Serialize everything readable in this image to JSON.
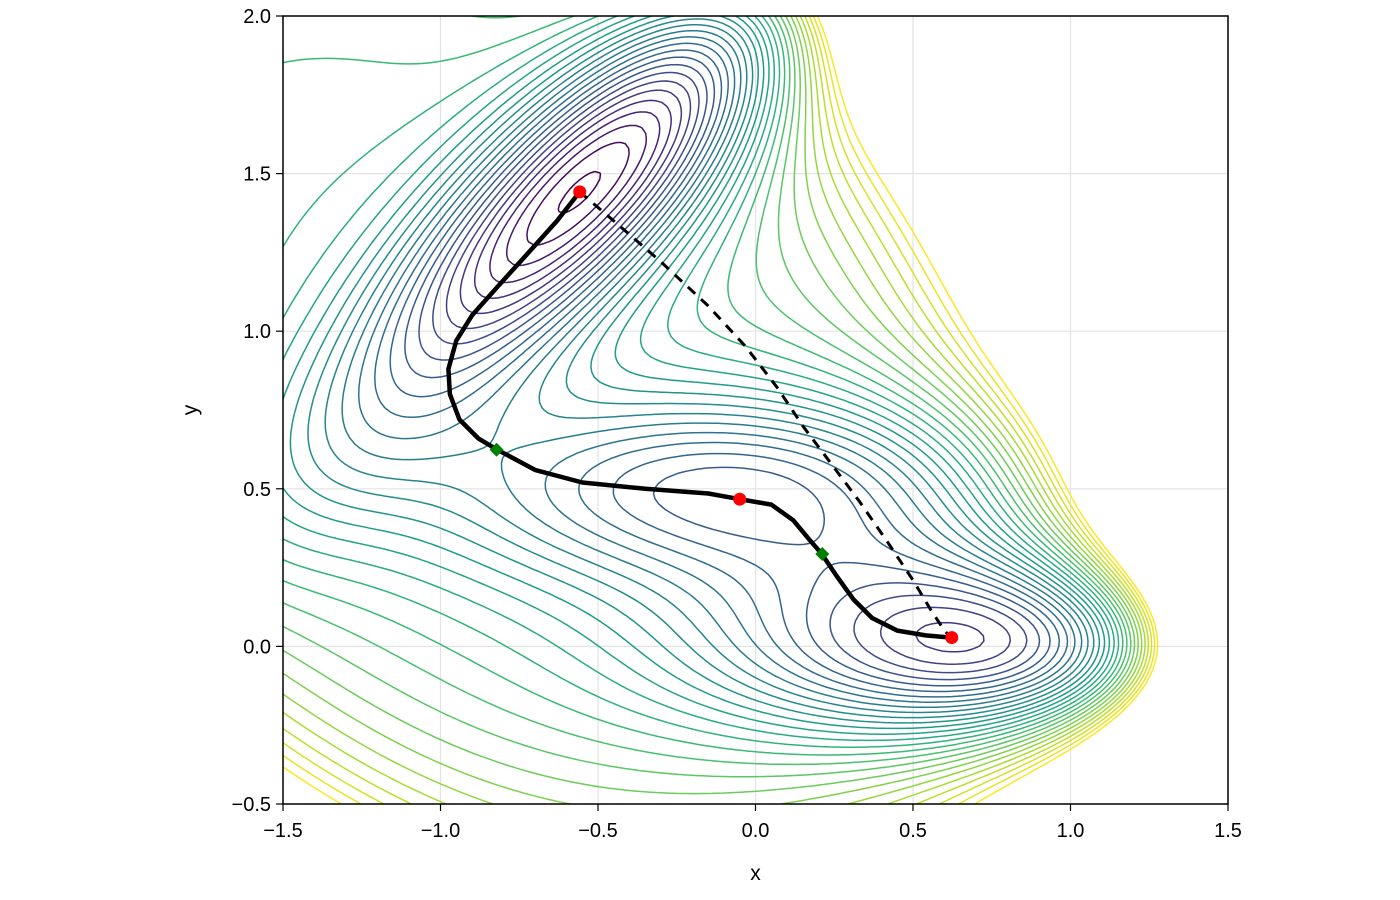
{
  "chart_data": {
    "type": "contour",
    "title": "",
    "xlabel": "x",
    "ylabel": "y",
    "xlim": [
      -1.5,
      1.5
    ],
    "ylim": [
      -0.5,
      2.0
    ],
    "xticks": [
      -1.5,
      -1.0,
      -0.5,
      0.0,
      0.5,
      1.0,
      1.5
    ],
    "yticks": [
      -0.5,
      0.0,
      0.5,
      1.0,
      1.5,
      2.0
    ],
    "xtick_labels": [
      "−1.5",
      "−1.0",
      "−0.5",
      "0.0",
      "0.5",
      "1.0",
      "1.5"
    ],
    "ytick_labels": [
      "−0.5",
      "0.0",
      "0.5",
      "1.0",
      "1.5",
      "2.0"
    ],
    "grid": true,
    "legend": "none",
    "colormap": "viridis",
    "surface": "Mueller-Brown potential",
    "series": [
      {
        "type": "line",
        "style": "solid",
        "color": "#000000",
        "x": [
          -0.558,
          -0.63,
          -0.72,
          -0.82,
          -0.9,
          -0.95,
          -0.975,
          -0.97,
          -0.94,
          -0.88,
          -0.82,
          -0.7,
          -0.55,
          -0.35,
          -0.15,
          -0.05,
          0.05,
          0.12,
          0.17,
          0.21,
          0.26,
          0.31,
          0.37,
          0.45,
          0.54,
          0.62
        ],
        "y": [
          1.442,
          1.35,
          1.25,
          1.14,
          1.05,
          0.97,
          0.88,
          0.8,
          0.72,
          0.66,
          0.624,
          0.56,
          0.52,
          0.5,
          0.485,
          0.467,
          0.45,
          0.4,
          0.34,
          0.294,
          0.22,
          0.15,
          0.09,
          0.05,
          0.035,
          0.028
        ]
      },
      {
        "type": "line",
        "style": "dashed",
        "color": "#000000",
        "x": [
          -0.558,
          -0.45,
          -0.3,
          -0.15,
          -0.03,
          0.07,
          0.15,
          0.24,
          0.33,
          0.42,
          0.5,
          0.56,
          0.6,
          0.62
        ],
        "y": [
          1.442,
          1.35,
          1.22,
          1.08,
          0.95,
          0.82,
          0.7,
          0.58,
          0.46,
          0.33,
          0.21,
          0.11,
          0.05,
          0.028
        ]
      },
      {
        "type": "scatter",
        "marker": "circle",
        "color": "#ff0000",
        "x": [
          -0.558,
          -0.05,
          0.623
        ],
        "y": [
          1.442,
          0.467,
          0.028
        ]
      },
      {
        "type": "scatter",
        "marker": "diamond",
        "color": "#008000",
        "x": [
          -0.822,
          0.212
        ],
        "y": [
          0.624,
          0.293
        ]
      }
    ]
  }
}
